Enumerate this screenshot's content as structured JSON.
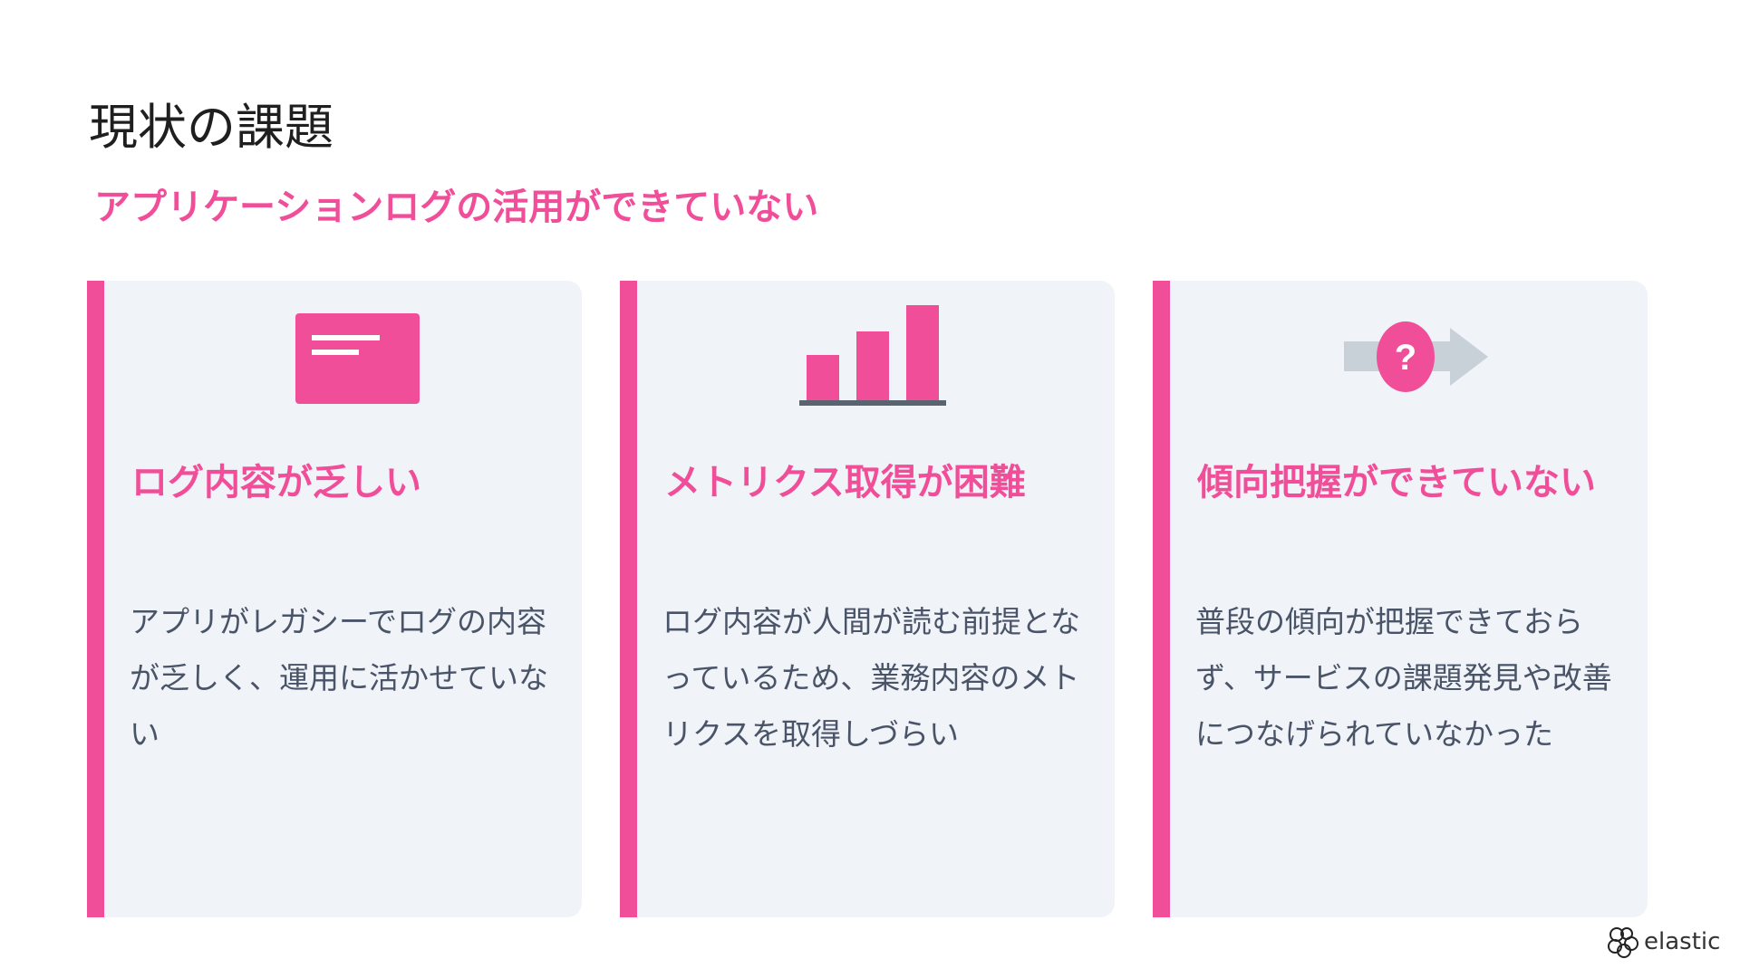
{
  "title": "現状の課題",
  "subtitle": "アプリケーションログの活用ができていない",
  "accent": "#f04e98",
  "cards": [
    {
      "icon": "document-icon",
      "heading": "ログ内容が乏しい",
      "body": "アプリがレガシーでログの内容が乏しく、運用に活かせていない"
    },
    {
      "icon": "bar-chart-icon",
      "heading": "メトリクス取得が困難",
      "body": "ログ内容が人間が読む前提となっているため、業務内容のメトリクスを取得しづらい"
    },
    {
      "icon": "question-arrow-icon",
      "heading": "傾向把握ができていない",
      "body": "普段の傾向が把握できておらず、サービスの課題発見や改善につなげられていなかった"
    }
  ],
  "logo": "elastic"
}
